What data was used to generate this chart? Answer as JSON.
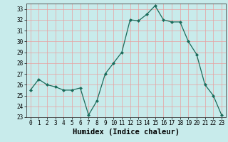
{
  "x": [
    0,
    1,
    2,
    3,
    4,
    5,
    6,
    7,
    8,
    9,
    10,
    11,
    12,
    13,
    14,
    15,
    16,
    17,
    18,
    19,
    20,
    21,
    22,
    23
  ],
  "y": [
    25.5,
    26.5,
    26.0,
    25.8,
    25.5,
    25.5,
    25.7,
    23.2,
    24.5,
    27.0,
    28.0,
    29.0,
    32.0,
    31.9,
    32.5,
    33.3,
    32.0,
    31.8,
    31.8,
    30.0,
    28.8,
    26.0,
    25.0,
    23.2
  ],
  "line_color": "#1a6b5a",
  "marker_color": "#1a6b5a",
  "bg_color": "#c8ebeb",
  "grid_color": "#e8a0a0",
  "xlabel": "Humidex (Indice chaleur)",
  "ylim": [
    23,
    33.5
  ],
  "xlim": [
    -0.5,
    23.5
  ],
  "yticks": [
    23,
    24,
    25,
    26,
    27,
    28,
    29,
    30,
    31,
    32,
    33
  ],
  "xticks": [
    0,
    1,
    2,
    3,
    4,
    5,
    6,
    7,
    8,
    9,
    10,
    11,
    12,
    13,
    14,
    15,
    16,
    17,
    18,
    19,
    20,
    21,
    22,
    23
  ],
  "tick_fontsize": 5.5,
  "xlabel_fontsize": 7.5
}
